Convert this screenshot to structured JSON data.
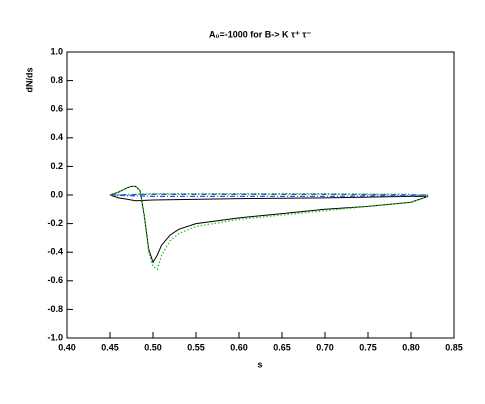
{
  "chart_data": {
    "type": "line",
    "title": "A₀=-1000 for B-> K τ⁺ τ⁻",
    "x_label": "s",
    "y_label": "dN/ds",
    "xlim": [
      0.4,
      0.85
    ],
    "xticks": [
      {
        "value": 0.4,
        "label": "0.40"
      },
      0.45,
      {
        "value": 0.5,
        "label": "0.50"
      },
      0.55,
      {
        "value": 0.6,
        "label": "0.60"
      },
      0.65,
      {
        "value": 0.7,
        "label": "0.70"
      },
      0.75,
      {
        "value": 0.8,
        "label": "0.80"
      },
      0.85
    ],
    "ylim": [
      -1.0,
      1.0
    ],
    "yticks": [
      {
        "value": -1.0,
        "label": "-1.0"
      },
      -0.8,
      -0.6,
      -0.4,
      -0.2,
      {
        "value": 0.0,
        "label": "0.0"
      },
      0.2,
      0.4,
      0.6,
      0.8,
      {
        "value": 1.0,
        "label": "1.0"
      }
    ],
    "series": [
      {
        "color": "#000000",
        "style": "solid",
        "x": [
          0.45,
          0.46,
          0.47,
          0.475,
          0.48,
          0.485,
          0.49,
          0.495,
          0.5,
          0.505,
          0.51,
          0.52,
          0.53,
          0.55,
          0.6,
          0.65,
          0.7,
          0.75,
          0.8,
          0.82,
          0.8,
          0.7,
          0.6,
          0.5,
          0.48,
          0.46,
          0.45
        ],
        "values": [
          0,
          0.02,
          0.05,
          0.06,
          0.06,
          0.03,
          -0.15,
          -0.38,
          -0.47,
          -0.42,
          -0.35,
          -0.28,
          -0.24,
          -0.2,
          -0.16,
          -0.13,
          -0.1,
          -0.08,
          -0.05,
          -0.01,
          -0.01,
          -0.02,
          -0.025,
          -0.035,
          -0.04,
          -0.02,
          0
        ]
      },
      {
        "color": "#22cc22",
        "style": "dotted",
        "x": [
          0.45,
          0.46,
          0.47,
          0.475,
          0.48,
          0.485,
          0.49,
          0.495,
          0.5,
          0.505,
          0.51,
          0.52,
          0.53,
          0.55,
          0.6,
          0.65,
          0.7,
          0.75,
          0.8,
          0.82,
          0.8,
          0.7,
          0.6,
          0.5,
          0.48,
          0.46,
          0.45
        ],
        "values": [
          0,
          0.02,
          0.05,
          0.06,
          0.06,
          0.03,
          -0.15,
          -0.4,
          -0.5,
          -0.52,
          -0.42,
          -0.32,
          -0.27,
          -0.22,
          -0.17,
          -0.14,
          -0.11,
          -0.08,
          -0.05,
          -0.01,
          0.005,
          0.01,
          0.01,
          0.01,
          0.005,
          0,
          0
        ]
      },
      {
        "color": "#3355cc",
        "style": "dashdot",
        "x": [
          0.45,
          0.5,
          0.6,
          0.7,
          0.8,
          0.82,
          0.7,
          0.6,
          0.5,
          0.45
        ],
        "values": [
          0,
          -0.01,
          -0.01,
          -0.01,
          -0.005,
          0,
          0.005,
          0.005,
          0.005,
          0
        ]
      }
    ]
  }
}
